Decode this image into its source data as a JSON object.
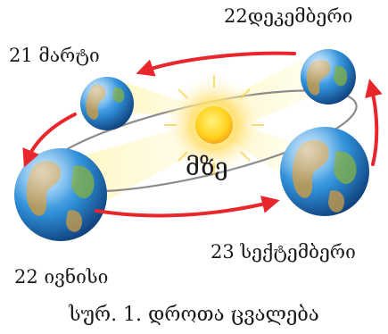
{
  "labels": {
    "december": "22დეკემბერი",
    "march": "21 მარტი",
    "sun": "მზე",
    "september": "23 სექტემბერი",
    "june": "22 ივნისი"
  },
  "caption": "სურ. 1. დროთა ცვალება",
  "colors": {
    "arrow": "#e8262b",
    "orbit": "#8c8c8c",
    "sun_core": "#ffd21f",
    "ray": "#fff3a6",
    "ocean": "#2f8fd8",
    "land": "#c49a4a"
  }
}
